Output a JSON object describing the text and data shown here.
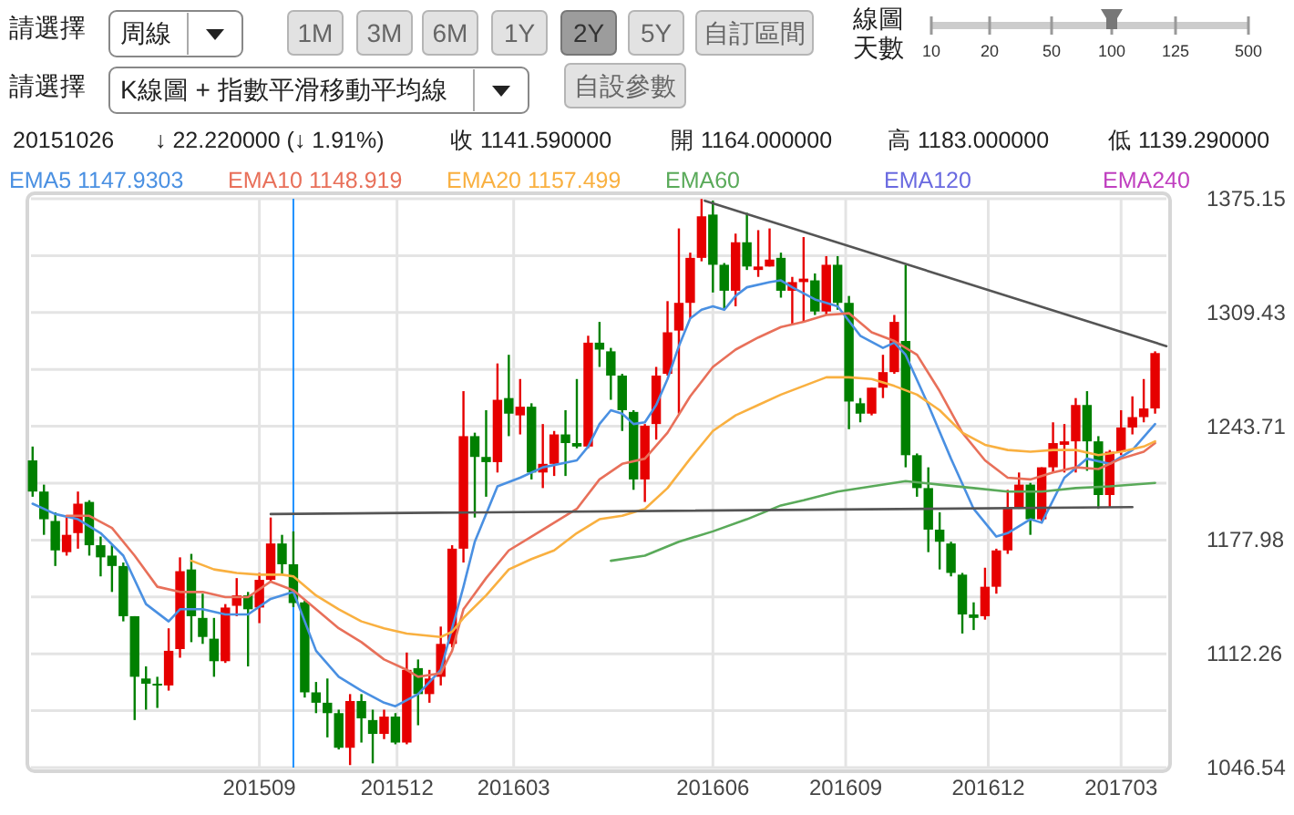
{
  "chart_data": {
    "type": "candlestick",
    "x": [
      "2015-05-18",
      "2015-05-25",
      "2015-06-01",
      "2015-06-08",
      "2015-06-15",
      "2015-06-22",
      "2015-06-29",
      "2015-07-06",
      "2015-07-13",
      "2015-07-20",
      "2015-07-27",
      "2015-08-03",
      "2015-08-10",
      "2015-08-17",
      "2015-08-24",
      "2015-08-31",
      "2015-09-07",
      "2015-09-14",
      "2015-09-21",
      "2015-09-28",
      "2015-10-05",
      "2015-10-12",
      "2015-10-19",
      "2015-10-26",
      "2015-11-02",
      "2015-11-09",
      "2015-11-16",
      "2015-11-23",
      "2015-11-30",
      "2015-12-07",
      "2015-12-14",
      "2015-12-21",
      "2015-12-28",
      "2016-01-04",
      "2016-01-11",
      "2016-01-18",
      "2016-01-25",
      "2016-02-01",
      "2016-02-08",
      "2016-02-15",
      "2016-02-22",
      "2016-02-29",
      "2016-03-07",
      "2016-03-14",
      "2016-03-21",
      "2016-03-28",
      "2016-04-04",
      "2016-04-11",
      "2016-04-18",
      "2016-04-25",
      "2016-05-02",
      "2016-05-09",
      "2016-05-16",
      "2016-05-23",
      "2016-05-30",
      "2016-06-06",
      "2016-06-13",
      "2016-06-20",
      "2016-06-27",
      "2016-07-04",
      "2016-07-11",
      "2016-07-18",
      "2016-07-25",
      "2016-08-01",
      "2016-08-08",
      "2016-08-15",
      "2016-08-22",
      "2016-08-29",
      "2016-09-05",
      "2016-09-12",
      "2016-09-19",
      "2016-09-26",
      "2016-10-03",
      "2016-10-10",
      "2016-10-17",
      "2016-10-24",
      "2016-10-31",
      "2016-11-07",
      "2016-11-14",
      "2016-11-21",
      "2016-11-28",
      "2016-12-05",
      "2016-12-12",
      "2016-12-19",
      "2016-12-26",
      "2017-01-02",
      "2017-01-09",
      "2017-01-16",
      "2017-01-23",
      "2017-01-30",
      "2017-02-06",
      "2017-02-13",
      "2017-02-20",
      "2017-02-27",
      "2017-03-06",
      "2017-03-13",
      "2017-03-20",
      "2017-03-27",
      "2017-04-03",
      "2017-04-10"
    ],
    "ohlc": [
      [
        1224,
        1232,
        1203,
        1206
      ],
      [
        1206,
        1210,
        1181,
        1190
      ],
      [
        1189,
        1194,
        1163,
        1172
      ],
      [
        1171,
        1192,
        1169,
        1181
      ],
      [
        1182,
        1206,
        1173,
        1199
      ],
      [
        1200,
        1201,
        1169,
        1175
      ],
      [
        1175,
        1180,
        1157,
        1168
      ],
      [
        1169,
        1175,
        1148,
        1163
      ],
      [
        1163,
        1165,
        1131,
        1134
      ],
      [
        1134,
        1134,
        1074,
        1099
      ],
      [
        1098,
        1105,
        1080,
        1095
      ],
      [
        1095,
        1099,
        1081,
        1094
      ],
      [
        1094,
        1127,
        1091,
        1114
      ],
      [
        1115,
        1168,
        1110,
        1160
      ],
      [
        1161,
        1170,
        1119,
        1134
      ],
      [
        1133,
        1147,
        1118,
        1122
      ],
      [
        1121,
        1133,
        1099,
        1108
      ],
      [
        1108,
        1141,
        1107,
        1139
      ],
      [
        1140,
        1156,
        1134,
        1146
      ],
      [
        1146,
        1148,
        1105,
        1138
      ],
      [
        1139,
        1159,
        1130,
        1155
      ],
      [
        1155,
        1191,
        1154,
        1176
      ],
      [
        1176,
        1181,
        1158,
        1164
      ],
      [
        1164,
        1183,
        1139.29,
        1141.59
      ],
      [
        1142,
        1143,
        1087,
        1090
      ],
      [
        1090,
        1096,
        1078,
        1084
      ],
      [
        1084,
        1098,
        1064,
        1078
      ],
      [
        1078,
        1080,
        1057,
        1058
      ],
      [
        1058,
        1089,
        1048,
        1085
      ],
      [
        1085,
        1089,
        1061,
        1075
      ],
      [
        1074,
        1080,
        1049,
        1066
      ],
      [
        1066,
        1080,
        1063,
        1076
      ],
      [
        1076,
        1078,
        1060,
        1061
      ],
      [
        1061,
        1113,
        1060,
        1103
      ],
      [
        1104,
        1109,
        1071,
        1089
      ],
      [
        1089,
        1103,
        1084,
        1098
      ],
      [
        1099,
        1128,
        1094,
        1118
      ],
      [
        1118,
        1175,
        1116,
        1173
      ],
      [
        1173,
        1264,
        1165,
        1238
      ],
      [
        1238,
        1240,
        1191,
        1226
      ],
      [
        1226,
        1253,
        1203,
        1223
      ],
      [
        1223,
        1280,
        1217,
        1259
      ],
      [
        1260,
        1285,
        1238,
        1251
      ],
      [
        1250,
        1271,
        1239,
        1255
      ],
      [
        1255,
        1257,
        1213,
        1217
      ],
      [
        1217,
        1245,
        1208,
        1222
      ],
      [
        1222,
        1241,
        1215,
        1239
      ],
      [
        1239,
        1253,
        1215,
        1234
      ],
      [
        1234,
        1271,
        1231,
        1232
      ],
      [
        1232,
        1296,
        1231,
        1292
      ],
      [
        1292,
        1304,
        1278,
        1288
      ],
      [
        1287,
        1289,
        1259,
        1273
      ],
      [
        1273,
        1274,
        1241,
        1253
      ],
      [
        1252,
        1253,
        1207,
        1213
      ],
      [
        1213,
        1245,
        1200,
        1244
      ],
      [
        1245,
        1278,
        1236,
        1273
      ],
      [
        1274,
        1316,
        1273,
        1298
      ],
      [
        1299,
        1358,
        1251,
        1315
      ],
      [
        1315,
        1344,
        1306,
        1341
      ],
      [
        1341,
        1375,
        1339,
        1365
      ],
      [
        1366,
        1374,
        1321,
        1337
      ],
      [
        1337,
        1338,
        1311,
        1322
      ],
      [
        1322,
        1355,
        1313,
        1350
      ],
      [
        1350,
        1367,
        1334,
        1336
      ],
      [
        1334,
        1357,
        1330,
        1336
      ],
      [
        1336,
        1358,
        1336,
        1340
      ],
      [
        1341,
        1344,
        1318,
        1322
      ],
      [
        1322,
        1330,
        1303,
        1327
      ],
      [
        1327,
        1353,
        1304,
        1329
      ],
      [
        1328,
        1332,
        1308,
        1310
      ],
      [
        1310,
        1342,
        1308,
        1337
      ],
      [
        1337,
        1342,
        1311,
        1315
      ],
      [
        1315,
        1319,
        1242,
        1258
      ],
      [
        1257,
        1260,
        1246,
        1251
      ],
      [
        1251,
        1266,
        1250,
        1266
      ],
      [
        1266,
        1285,
        1260,
        1275
      ],
      [
        1275,
        1308,
        1274,
        1304
      ],
      [
        1293,
        1337,
        1220,
        1227
      ],
      [
        1227,
        1228,
        1203,
        1208
      ],
      [
        1208,
        1220,
        1171,
        1184
      ],
      [
        1184,
        1194,
        1161,
        1177
      ],
      [
        1176,
        1177,
        1157,
        1159
      ],
      [
        1158,
        1159,
        1124,
        1135
      ],
      [
        1135,
        1142,
        1126,
        1133
      ],
      [
        1134,
        1162,
        1132,
        1151
      ],
      [
        1151,
        1173,
        1147,
        1172
      ],
      [
        1172,
        1207,
        1170,
        1197
      ],
      [
        1197,
        1217,
        1196,
        1210
      ],
      [
        1210,
        1211,
        1181,
        1190
      ],
      [
        1190,
        1220,
        1189,
        1220
      ],
      [
        1220,
        1246,
        1217,
        1234
      ],
      [
        1233,
        1245,
        1217,
        1235
      ],
      [
        1235,
        1260,
        1217,
        1256
      ],
      [
        1256,
        1264,
        1218,
        1235
      ],
      [
        1235,
        1238,
        1196,
        1204
      ],
      [
        1204,
        1230,
        1197,
        1229
      ],
      [
        1229,
        1253,
        1227,
        1243
      ],
      [
        1243,
        1261,
        1239,
        1249
      ],
      [
        1249,
        1271,
        1246,
        1254
      ],
      [
        1254,
        1287,
        1251,
        1286
      ]
    ],
    "series": [
      {
        "name": "EMA5 1147.9303",
        "color": "#4a90e2",
        "type": "line",
        "x": [
          "2015-05-18",
          "2015-06-01",
          "2015-06-15",
          "2015-06-29",
          "2015-07-13",
          "2015-07-27",
          "2015-08-10",
          "2015-08-17",
          "2015-08-31",
          "2015-09-14",
          "2015-09-28",
          "2015-10-12",
          "2015-10-26",
          "2015-11-09",
          "2015-11-23",
          "2015-12-07",
          "2015-12-21",
          "2015-12-28",
          "2016-01-11",
          "2016-01-25",
          "2016-02-01",
          "2016-02-08",
          "2016-02-15",
          "2016-02-29",
          "2016-03-14",
          "2016-03-28",
          "2016-04-18",
          "2016-04-25",
          "2016-05-02",
          "2016-05-09",
          "2016-05-16",
          "2016-05-23",
          "2016-05-30",
          "2016-06-06",
          "2016-06-13",
          "2016-06-20",
          "2016-06-27",
          "2016-07-04",
          "2016-07-11",
          "2016-07-18",
          "2016-07-25",
          "2016-08-01",
          "2016-08-15",
          "2016-08-22",
          "2016-08-29",
          "2016-09-12",
          "2016-09-26",
          "2016-10-10",
          "2016-10-24",
          "2016-10-31",
          "2016-11-07",
          "2016-11-21",
          "2016-12-05",
          "2016-12-19",
          "2017-01-02",
          "2017-01-09",
          "2017-01-23",
          "2017-01-30",
          "2017-02-13",
          "2017-02-27",
          "2017-03-13",
          "2017-03-27",
          "2017-04-10"
        ],
        "values": [
          1199,
          1193,
          1190,
          1182,
          1169,
          1141,
          1131,
          1138,
          1138,
          1135,
          1135,
          1144,
          1148,
          1114,
          1099,
          1091,
          1084,
          1082,
          1089,
          1103,
          1127,
          1151,
          1177,
          1209,
          1214,
          1220,
          1224,
          1232,
          1245,
          1253,
          1251,
          1245,
          1246,
          1256,
          1271,
          1290,
          1306,
          1311,
          1313,
          1311,
          1319,
          1324,
          1327,
          1328,
          1324,
          1317,
          1313,
          1296,
          1289,
          1292,
          1285,
          1256,
          1225,
          1196,
          1180,
          1182,
          1190,
          1188,
          1214,
          1225,
          1222,
          1230,
          1245
        ]
      },
      {
        "name": "EMA10 1148.919",
        "color": "#e8705a",
        "type": "line",
        "x": [
          "2015-06-08",
          "2015-06-22",
          "2015-07-06",
          "2015-07-20",
          "2015-08-03",
          "2015-08-17",
          "2015-08-31",
          "2015-09-14",
          "2015-09-28",
          "2015-10-12",
          "2015-10-26",
          "2015-11-09",
          "2015-11-23",
          "2015-12-07",
          "2015-12-21",
          "2016-01-04",
          "2016-01-11",
          "2016-01-25",
          "2016-02-01",
          "2016-02-08",
          "2016-02-22",
          "2016-03-07",
          "2016-03-21",
          "2016-04-04",
          "2016-04-18",
          "2016-05-02",
          "2016-05-16",
          "2016-05-30",
          "2016-06-13",
          "2016-06-27",
          "2016-07-11",
          "2016-07-25",
          "2016-08-08",
          "2016-08-22",
          "2016-09-05",
          "2016-09-19",
          "2016-10-03",
          "2016-10-17",
          "2016-10-31",
          "2016-11-14",
          "2016-11-28",
          "2016-12-12",
          "2016-12-26",
          "2017-01-09",
          "2017-01-23",
          "2017-02-06",
          "2017-02-20",
          "2017-03-06",
          "2017-03-20",
          "2017-04-03",
          "2017-04-10"
        ],
        "values": [
          1192,
          1192,
          1185,
          1169,
          1151,
          1148,
          1148,
          1145,
          1145,
          1154,
          1149,
          1138,
          1127,
          1119,
          1109,
          1103,
          1099,
          1101,
          1114,
          1138,
          1156,
          1172,
          1180,
          1188,
          1196,
          1213,
          1222,
          1225,
          1240,
          1261,
          1278,
          1288,
          1295,
          1301,
          1304,
          1308,
          1309,
          1298,
          1293,
          1285,
          1264,
          1240,
          1224,
          1214,
          1213,
          1217,
          1220,
          1219,
          1225,
          1229,
          1234
        ]
      },
      {
        "name": "EMA20 1157.499",
        "color": "#f9b040",
        "type": "line",
        "x": [
          "2015-08-24",
          "2015-09-07",
          "2015-09-21",
          "2015-10-05",
          "2015-10-19",
          "2015-10-26",
          "2015-11-09",
          "2015-11-23",
          "2015-12-07",
          "2015-12-21",
          "2016-01-04",
          "2016-01-25",
          "2016-02-01",
          "2016-02-08",
          "2016-02-22",
          "2016-03-07",
          "2016-03-21",
          "2016-04-04",
          "2016-04-18",
          "2016-05-02",
          "2016-05-16",
          "2016-05-30",
          "2016-06-13",
          "2016-06-27",
          "2016-07-11",
          "2016-07-25",
          "2016-08-08",
          "2016-08-22",
          "2016-09-05",
          "2016-09-19",
          "2016-10-03",
          "2016-10-17",
          "2016-10-31",
          "2016-11-14",
          "2016-11-28",
          "2016-12-12",
          "2016-12-26",
          "2017-01-09",
          "2017-01-23",
          "2017-02-06",
          "2017-02-20",
          "2017-03-06",
          "2017-03-20",
          "2017-04-03",
          "2017-04-10"
        ],
        "values": [
          1166,
          1161,
          1159,
          1158,
          1158,
          1157,
          1146,
          1138,
          1131,
          1127,
          1124,
          1122,
          1125,
          1133,
          1146,
          1161,
          1167,
          1172,
          1182,
          1190,
          1192,
          1196,
          1208,
          1225,
          1241,
          1250,
          1256,
          1262,
          1267,
          1272,
          1272,
          1271,
          1267,
          1262,
          1253,
          1240,
          1233,
          1230,
          1229,
          1230,
          1230,
          1227,
          1229,
          1232,
          1235
        ]
      },
      {
        "name": "EMA60",
        "color": "#5aaa5a",
        "type": "line",
        "x": [
          "2016-05-09",
          "2016-05-30",
          "2016-06-20",
          "2016-07-11",
          "2016-08-01",
          "2016-08-22",
          "2016-09-05",
          "2016-09-26",
          "2016-10-17",
          "2016-11-07",
          "2016-11-28",
          "2016-12-19",
          "2017-01-09",
          "2017-01-30",
          "2017-02-20",
          "2017-03-13",
          "2017-04-10"
        ],
        "values": [
          1166,
          1169,
          1177,
          1183,
          1190,
          1198,
          1201,
          1206,
          1209,
          1212,
          1210,
          1208,
          1206,
          1206,
          1208,
          1209,
          1211
        ]
      },
      {
        "color": "#555555",
        "type": "line",
        "x": [
          "2015-10-12",
          "2017-03-27"
        ],
        "values": [
          1193,
          1197
        ]
      },
      {
        "color": "#555555",
        "type": "line",
        "x": [
          "2016-07-06",
          "2017-04-17"
        ],
        "values": [
          1374,
          1290
        ]
      }
    ],
    "xlim": [
      "2015-05-17",
      "2017-04-17"
    ],
    "xticks": [
      {
        "value": "2015-10-05",
        "label": "201509"
      },
      {
        "value": "2015-12-29",
        "label": "201512"
      },
      {
        "value": "2016-03-10",
        "label": "201603"
      },
      {
        "value": "2016-07-11",
        "label": "201606"
      },
      {
        "value": "2016-10-01",
        "label": "201609"
      },
      {
        "value": "2016-12-28",
        "label": "201612"
      },
      {
        "value": "2017-03-20",
        "label": "201703"
      }
    ],
    "ylim": [
      1046.54,
      1375.15
    ],
    "yticks": [
      1046.54,
      {
        "value": 1079.4,
        "label": null
      },
      1112.26,
      {
        "value": 1145.12,
        "label": null
      },
      1177.98,
      {
        "value": 1210.845,
        "label": null
      },
      1243.71,
      {
        "value": 1276.57,
        "label": null
      },
      1309.43,
      {
        "value": 1342.29,
        "label": null
      },
      1375.15
    ],
    "grid": true,
    "legend": "top",
    "ref_lines": [
      {
        "axis": "x",
        "value": "2015-10-26",
        "color": "#1e90ff"
      }
    ],
    "annotations": [
      "請選擇",
      "周線",
      "1M",
      "3M",
      "6M",
      "1Y",
      "2Y",
      "5Y",
      "自訂區間",
      "線圖",
      "天數",
      "10",
      "20",
      "50",
      "100",
      "125",
      "500",
      "請選擇",
      "K線圖 + 指數平滑移動平均線",
      "自設參數",
      "20151026",
      "↓ 22.220000 (↓ 1.91%)",
      "收 1141.590000",
      "開 1164.000000",
      "高 1183.000000",
      "低 1139.290000",
      "EMA120",
      "EMA240"
    ]
  }
}
